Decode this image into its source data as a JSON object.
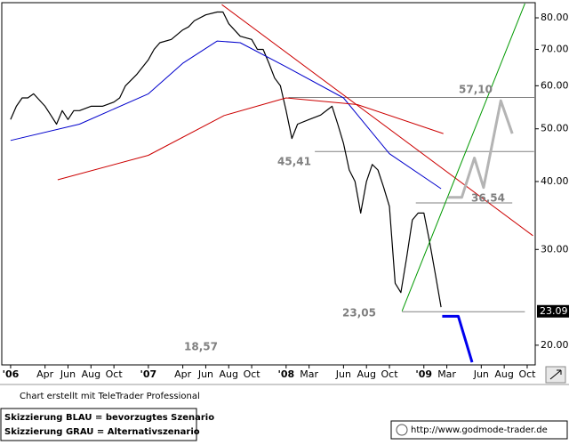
{
  "chart_data": {
    "type": "line",
    "log_y": true,
    "xlim": [
      -0.77,
      45.7
    ],
    "ylim": [
      18.4,
      85.3
    ],
    "xticks": [
      {
        "value": 0,
        "label": "'06"
      },
      {
        "value": 3,
        "label": "Apr"
      },
      {
        "value": 5,
        "label": "Jun"
      },
      {
        "value": 7,
        "label": "Aug"
      },
      {
        "value": 9,
        "label": "Oct"
      },
      {
        "value": 12,
        "label": "'07"
      },
      {
        "value": 15,
        "label": "Apr"
      },
      {
        "value": 17,
        "label": "Jun"
      },
      {
        "value": 19,
        "label": "Aug"
      },
      {
        "value": 21,
        "label": "Oct"
      },
      {
        "value": 24,
        "label": "'08"
      },
      {
        "value": 26,
        "label": "Mar"
      },
      {
        "value": 29,
        "label": "Jun"
      },
      {
        "value": 31,
        "label": "Aug"
      },
      {
        "value": 33,
        "label": "Oct"
      },
      {
        "value": 36,
        "label": "'09"
      },
      {
        "value": 38,
        "label": "Mar"
      },
      {
        "value": 41,
        "label": "Jun"
      },
      {
        "value": 43,
        "label": "Aug"
      },
      {
        "value": 45,
        "label": "Oct"
      }
    ],
    "yticks": [
      {
        "value": 20,
        "label": "20.00"
      },
      {
        "value": 30,
        "label": "30.00"
      },
      {
        "value": 40,
        "label": "40.00"
      },
      {
        "value": 50,
        "label": "50.00"
      },
      {
        "value": 60,
        "label": "60.00"
      },
      {
        "value": 70,
        "label": "70.00"
      },
      {
        "value": 80,
        "label": "80.00"
      }
    ],
    "series": [
      {
        "color": "#000000",
        "x": [
          0,
          0.5,
          1,
          1.5,
          2,
          3,
          3.5,
          4,
          4.5,
          5,
          5.5,
          6,
          7,
          8,
          9,
          9.5,
          10,
          11,
          12,
          12.5,
          13,
          14,
          15,
          15.5,
          16,
          17,
          18,
          18.5,
          19,
          20,
          21,
          21.5,
          22,
          22.5,
          23,
          23.5,
          24,
          24.5,
          25,
          26,
          27,
          28,
          28.5,
          29,
          29.5,
          30,
          30.5,
          31,
          31.5,
          32,
          32.5,
          33,
          33.5,
          34,
          34.5,
          35,
          35.5,
          36,
          36.5,
          37,
          37.5
        ],
        "values": [
          52,
          55,
          57,
          57,
          58,
          55,
          53,
          51,
          54,
          52,
          54,
          54,
          55,
          55,
          56,
          57,
          60,
          63,
          67,
          70,
          72,
          73,
          76,
          77,
          79,
          81,
          82,
          82,
          78,
          74,
          73,
          70,
          70,
          66,
          62,
          60,
          54,
          48,
          51,
          52,
          53,
          55,
          51,
          47,
          42,
          40,
          35,
          40,
          43,
          42,
          39,
          36,
          26,
          25,
          29,
          34,
          35,
          35,
          31,
          27,
          23.5
        ]
      },
      {
        "color": "#0000cc",
        "x": [
          0,
          6,
          12,
          15,
          18,
          20,
          24,
          29,
          33,
          37.5
        ],
        "values": [
          47.6,
          51,
          58,
          66,
          72.5,
          72,
          65,
          57,
          45,
          38.8
        ]
      },
      {
        "color": "#cc0000",
        "x": [
          4.1,
          12,
          18.6,
          24,
          30.2,
          37.7
        ],
        "values": [
          40.3,
          44.7,
          52.9,
          57,
          55.4,
          49
        ]
      },
      {
        "color": "#cc0000",
        "x": [
          18.4,
          45.5
        ],
        "values": [
          84.6,
          31.8
        ]
      },
      {
        "color": "#009900",
        "x": [
          34.1,
          44.8
        ],
        "values": [
          23.1,
          85
        ]
      },
      {
        "color": "#b4b4b4",
        "x": [
          38.1,
          39.3,
          40.4,
          41.2,
          42.7,
          43.7
        ],
        "values": [
          37.4,
          37.4,
          44.2,
          39,
          56.3,
          49
        ]
      },
      {
        "color": "#0000ee",
        "x": [
          37.6,
          39,
          40.2
        ],
        "values": [
          22.6,
          22.6,
          18.6
        ]
      }
    ],
    "levels": [
      {
        "value": 57.1,
        "label": "57,10",
        "x": [
          24.2,
          45.8
        ]
      },
      {
        "value": 45.41,
        "label": "45,41",
        "x": [
          26.5,
          45.6
        ]
      },
      {
        "value": 36.54,
        "label": "36,54",
        "x": [
          35.3,
          43.7
        ]
      },
      {
        "value": 23.05,
        "label": "23,05",
        "x": [
          34.1,
          44.8
        ]
      }
    ],
    "annotation": "18,57",
    "last_price": 23.09
  },
  "footer": {
    "credit": "Chart erstellt mit TeleTrader Professional",
    "notes": [
      "Skizzierung BLAU = bevorzugtes Szenario",
      "Skizzierung GRAU = Alternativszenario"
    ],
    "url": "http://www.godmode-trader.de"
  }
}
